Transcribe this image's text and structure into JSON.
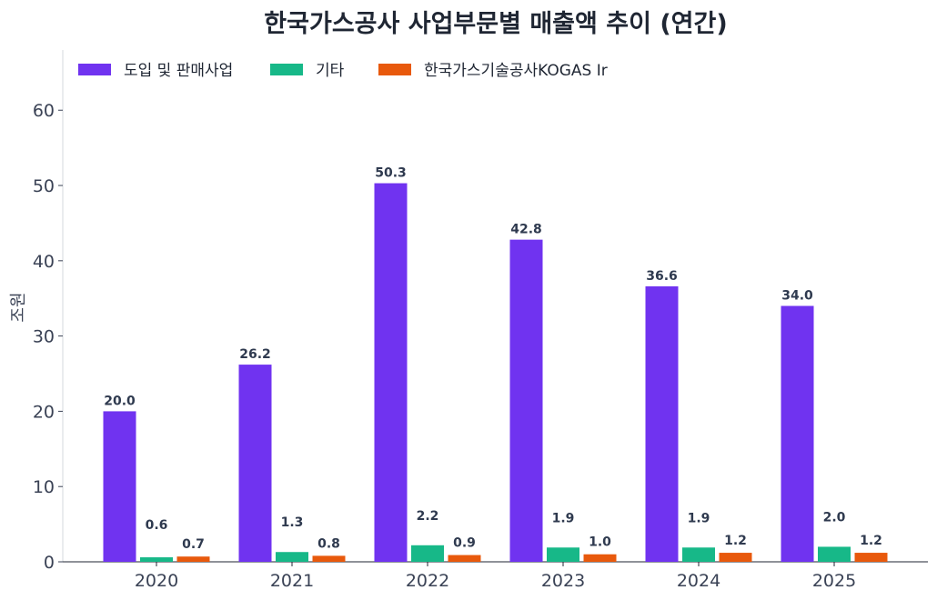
{
  "chart_data": {
    "type": "bar",
    "title": "한국가스공사 사업부문별 매출액 추이 (연간)",
    "ylabel": "조원",
    "xlabel": "",
    "categories": [
      "2020",
      "2021",
      "2022",
      "2023",
      "2024",
      "2025"
    ],
    "ylim": [
      0,
      68
    ],
    "yticks": [
      0,
      10,
      20,
      30,
      40,
      50,
      60
    ],
    "grid": false,
    "legend_position": "top-left",
    "series": [
      {
        "name": "도입 및 판매사업",
        "color": "#7033f0",
        "values": [
          20.0,
          26.2,
          50.3,
          42.8,
          36.6,
          34.0
        ]
      },
      {
        "name": "기타",
        "color": "#17b888",
        "values": [
          0.6,
          1.3,
          2.2,
          1.9,
          1.9,
          2.0
        ]
      },
      {
        "name": "한국가스기술공사KOGAS Ir",
        "color": "#e8590c",
        "values": [
          0.7,
          0.8,
          0.9,
          1.0,
          1.2,
          1.2
        ]
      }
    ]
  }
}
